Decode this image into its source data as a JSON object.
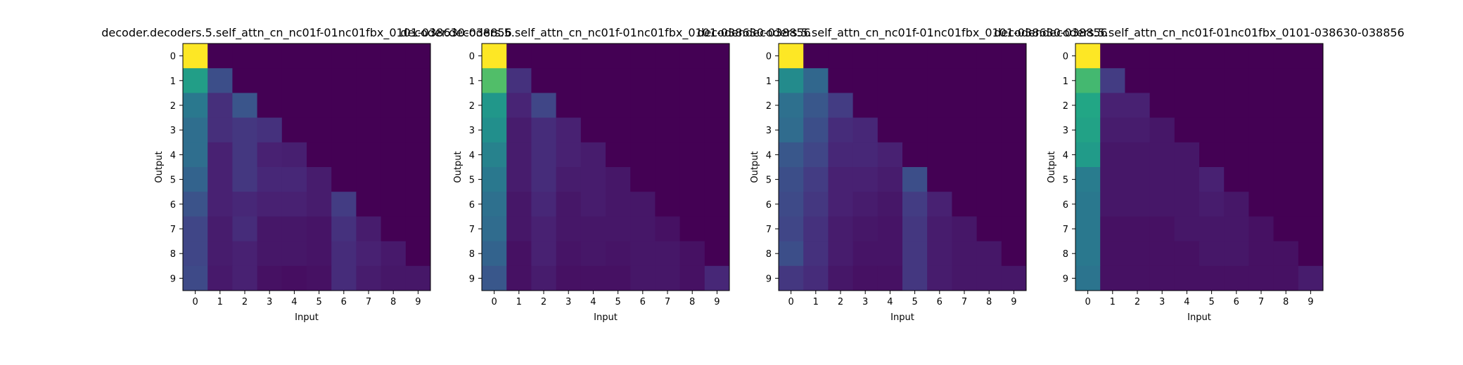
{
  "chart_data": [
    {
      "type": "heatmap",
      "title": "decoder.decoders.5.self_attn_cn_nc01f-01nc01fbx_0101-038630-038856",
      "xlabel": "Input",
      "ylabel": "Output",
      "x_ticks": [
        "0",
        "1",
        "2",
        "3",
        "4",
        "5",
        "6",
        "7",
        "8",
        "9"
      ],
      "y_ticks": [
        "0",
        "1",
        "2",
        "3",
        "4",
        "5",
        "6",
        "7",
        "8",
        "9"
      ],
      "colormap": "viridis",
      "vrange": [
        0,
        1
      ],
      "values": [
        [
          1.0,
          0,
          0,
          0,
          0,
          0,
          0,
          0,
          0,
          0
        ],
        [
          0.7,
          0.3,
          0,
          0,
          0,
          0,
          0,
          0,
          0,
          0
        ],
        [
          0.5,
          0.17,
          0.33,
          0,
          0,
          0,
          0,
          0,
          0,
          0
        ],
        [
          0.45,
          0.17,
          0.2,
          0.18,
          0,
          0,
          0,
          0,
          0,
          0
        ],
        [
          0.45,
          0.12,
          0.2,
          0.12,
          0.11,
          0,
          0,
          0,
          0,
          0
        ],
        [
          0.4,
          0.12,
          0.2,
          0.14,
          0.14,
          0.1,
          0,
          0,
          0,
          0
        ],
        [
          0.32,
          0.12,
          0.14,
          0.12,
          0.12,
          0.1,
          0.22,
          0,
          0,
          0
        ],
        [
          0.26,
          0.1,
          0.16,
          0.08,
          0.08,
          0.07,
          0.18,
          0.1,
          0,
          0
        ],
        [
          0.26,
          0.1,
          0.12,
          0.08,
          0.08,
          0.07,
          0.16,
          0.12,
          0.09,
          0
        ],
        [
          0.28,
          0.09,
          0.12,
          0.06,
          0.05,
          0.06,
          0.16,
          0.1,
          0.08,
          0.08
        ]
      ]
    },
    {
      "type": "heatmap",
      "title": "decoder.decoders.5.self_attn_cn_nc01f-01nc01fbx_0101-038630-038856",
      "xlabel": "Input",
      "ylabel": "Output",
      "x_ticks": [
        "0",
        "1",
        "2",
        "3",
        "4",
        "5",
        "6",
        "7",
        "8",
        "9"
      ],
      "y_ticks": [
        "0",
        "1",
        "2",
        "3",
        "4",
        "5",
        "6",
        "7",
        "8",
        "9"
      ],
      "colormap": "viridis",
      "vrange": [
        0,
        1
      ],
      "values": [
        [
          1.0,
          0,
          0,
          0,
          0,
          0,
          0,
          0,
          0,
          0
        ],
        [
          0.82,
          0.18,
          0,
          0,
          0,
          0,
          0,
          0,
          0,
          0
        ],
        [
          0.66,
          0.13,
          0.26,
          0,
          0,
          0,
          0,
          0,
          0,
          0
        ],
        [
          0.62,
          0.1,
          0.16,
          0.12,
          0,
          0,
          0,
          0,
          0,
          0
        ],
        [
          0.55,
          0.1,
          0.16,
          0.12,
          0.1,
          0,
          0,
          0,
          0,
          0
        ],
        [
          0.5,
          0.1,
          0.16,
          0.1,
          0.1,
          0.08,
          0,
          0,
          0,
          0
        ],
        [
          0.46,
          0.08,
          0.14,
          0.08,
          0.1,
          0.08,
          0.08,
          0,
          0,
          0
        ],
        [
          0.44,
          0.08,
          0.12,
          0.08,
          0.08,
          0.08,
          0.08,
          0.06,
          0,
          0
        ],
        [
          0.4,
          0.06,
          0.12,
          0.07,
          0.08,
          0.07,
          0.08,
          0.08,
          0.06,
          0
        ],
        [
          0.34,
          0.06,
          0.1,
          0.06,
          0.06,
          0.06,
          0.08,
          0.08,
          0.06,
          0.14
        ]
      ]
    },
    {
      "type": "heatmap",
      "title": "decoder.decoders.5.self_attn_cn_nc01f-01nc01fbx_0101-038630-038856",
      "xlabel": "Input",
      "ylabel": "Output",
      "x_ticks": [
        "0",
        "1",
        "2",
        "3",
        "4",
        "5",
        "6",
        "7",
        "8",
        "9"
      ],
      "y_ticks": [
        "0",
        "1",
        "2",
        "3",
        "4",
        "5",
        "6",
        "7",
        "8",
        "9"
      ],
      "colormap": "viridis",
      "vrange": [
        0,
        1
      ],
      "values": [
        [
          1.0,
          0,
          0,
          0,
          0,
          0,
          0,
          0,
          0,
          0
        ],
        [
          0.6,
          0.42,
          0,
          0,
          0,
          0,
          0,
          0,
          0,
          0
        ],
        [
          0.46,
          0.34,
          0.22,
          0,
          0,
          0,
          0,
          0,
          0,
          0
        ],
        [
          0.44,
          0.3,
          0.16,
          0.14,
          0,
          0,
          0,
          0,
          0,
          0
        ],
        [
          0.34,
          0.26,
          0.14,
          0.14,
          0.12,
          0,
          0,
          0,
          0,
          0
        ],
        [
          0.3,
          0.22,
          0.12,
          0.12,
          0.1,
          0.3,
          0,
          0,
          0,
          0
        ],
        [
          0.28,
          0.2,
          0.12,
          0.1,
          0.08,
          0.22,
          0.12,
          0,
          0,
          0
        ],
        [
          0.26,
          0.18,
          0.1,
          0.08,
          0.07,
          0.2,
          0.1,
          0.08,
          0,
          0
        ],
        [
          0.3,
          0.18,
          0.1,
          0.07,
          0.07,
          0.2,
          0.1,
          0.08,
          0.08,
          0
        ],
        [
          0.2,
          0.16,
          0.08,
          0.06,
          0.06,
          0.2,
          0.1,
          0.08,
          0.08,
          0.08
        ]
      ]
    },
    {
      "type": "heatmap",
      "title": "decoder.decoders.5.self_attn_cn_nc01f-01nc01fbx_0101-038630-038856",
      "xlabel": "Input",
      "ylabel": "Output",
      "x_ticks": [
        "0",
        "1",
        "2",
        "3",
        "4",
        "5",
        "6",
        "7",
        "8",
        "9"
      ],
      "y_ticks": [
        "0",
        "1",
        "2",
        "3",
        "4",
        "5",
        "6",
        "7",
        "8",
        "9"
      ],
      "colormap": "viridis",
      "vrange": [
        0,
        1
      ],
      "values": [
        [
          1.0,
          0,
          0,
          0,
          0,
          0,
          0,
          0,
          0,
          0
        ],
        [
          0.8,
          0.22,
          0,
          0,
          0,
          0,
          0,
          0,
          0,
          0
        ],
        [
          0.74,
          0.12,
          0.12,
          0,
          0,
          0,
          0,
          0,
          0,
          0
        ],
        [
          0.72,
          0.1,
          0.1,
          0.08,
          0,
          0,
          0,
          0,
          0,
          0
        ],
        [
          0.68,
          0.08,
          0.08,
          0.08,
          0.08,
          0,
          0,
          0,
          0,
          0
        ],
        [
          0.52,
          0.08,
          0.08,
          0.08,
          0.08,
          0.12,
          0,
          0,
          0,
          0
        ],
        [
          0.5,
          0.08,
          0.08,
          0.08,
          0.08,
          0.1,
          0.08,
          0,
          0,
          0
        ],
        [
          0.5,
          0.06,
          0.06,
          0.06,
          0.08,
          0.08,
          0.08,
          0.06,
          0,
          0
        ],
        [
          0.5,
          0.06,
          0.06,
          0.06,
          0.06,
          0.08,
          0.08,
          0.06,
          0.06,
          0
        ],
        [
          0.48,
          0.06,
          0.06,
          0.06,
          0.06,
          0.06,
          0.06,
          0.06,
          0.06,
          0.1
        ]
      ]
    }
  ]
}
